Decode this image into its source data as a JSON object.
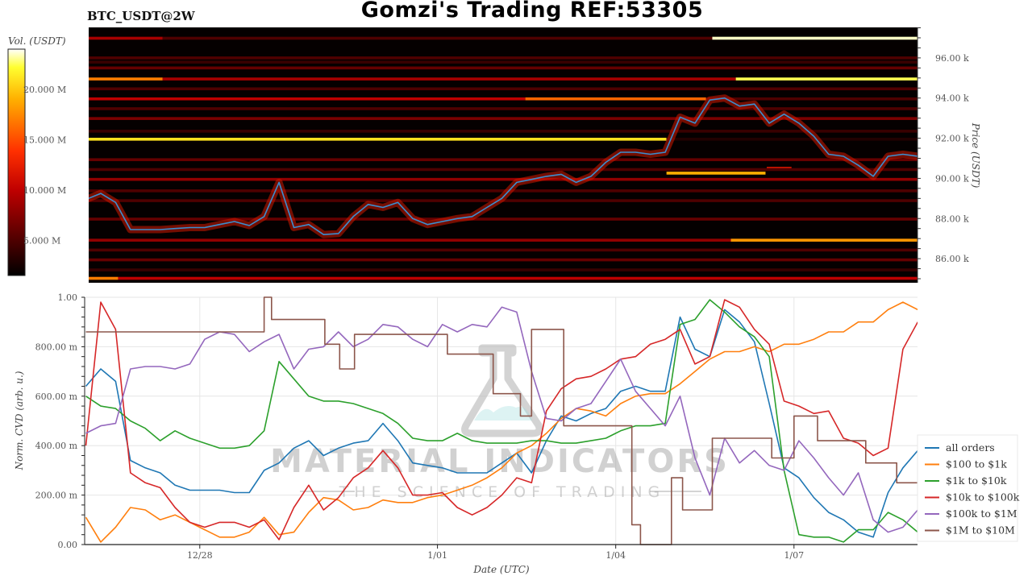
{
  "header": {
    "title": "Gomzi's Trading REF:53305",
    "symbol": "BTC_USDT@2W"
  },
  "watermark": {
    "brand": "MATERIAL INDICATORS",
    "tagline": "THE SCIENCE OF TRADING",
    "icon": "flask-icon"
  },
  "chart_data": [
    {
      "type": "heatmap",
      "ylabel": "Price (USDT)",
      "ylim": [
        84800,
        97520
      ],
      "yticks": [
        {
          "value": 86000,
          "label": "86.00 k"
        },
        {
          "value": 88000,
          "label": "88.00 k"
        },
        {
          "value": 90000,
          "label": "90.00 k"
        },
        {
          "value": 92000,
          "label": "92.00 k"
        },
        {
          "value": 94000,
          "label": "94.00 k"
        },
        {
          "value": 96000,
          "label": "96.00 k"
        }
      ],
      "colorbar": {
        "label": "Vol. (USDT)",
        "colormap": "hot",
        "range_millions": [
          1.5,
          24
        ],
        "ticks": [
          {
            "value": 5,
            "label": "5.000 M"
          },
          {
            "value": 10,
            "label": "10.000 M"
          },
          {
            "value": 15,
            "label": "15.000 M"
          },
          {
            "value": 20,
            "label": "20.000 M"
          }
        ]
      },
      "bands": [
        {
          "price": 96980,
          "segments": [
            [
              "12/26 02:00",
              "12/27 09:00",
              9
            ],
            [
              "12/27 09:00",
              "01/05 15:00",
              5
            ],
            [
              "01/05 15:00",
              "01/09 02:00",
              23.5
            ]
          ]
        },
        {
          "price": 96000,
          "segments": [
            [
              "12/26 02:00",
              "01/09 02:00",
              5
            ]
          ]
        },
        {
          "price": 95790,
          "segments": [
            [
              "12/26 02:00",
              "01/09 02:00",
              4
            ]
          ]
        },
        {
          "price": 95500,
          "segments": [
            [
              "12/26 02:00",
              "01/09 02:00",
              6
            ]
          ]
        },
        {
          "price": 94950,
          "segments": [
            [
              "12/26 02:00",
              "12/27 09:00",
              17
            ],
            [
              "12/27 09:00",
              "01/06 00:30",
              9
            ],
            [
              "01/06 00:30",
              "01/09 02:00",
              22.5
            ]
          ]
        },
        {
          "price": 94460,
          "segments": [
            [
              "12/26 02:00",
              "01/09 02:00",
              5
            ]
          ]
        },
        {
          "price": 93960,
          "segments": [
            [
              "12/26 02:00",
              "01/02 11:30",
              10
            ],
            [
              "01/02 11:30",
              "01/05 12:30",
              16
            ],
            [
              "01/05 12:30",
              "01/09 02:00",
              5
            ]
          ]
        },
        {
          "price": 93470,
          "segments": [
            [
              "12/26 02:00",
              "01/09 02:00",
              5
            ]
          ]
        },
        {
          "price": 92980,
          "segments": [
            [
              "12/26 02:00",
              "01/09 02:00",
              7
            ]
          ]
        },
        {
          "price": 92350,
          "segments": [
            [
              "12/26 02:00",
              "01/09 02:00",
              4
            ]
          ]
        },
        {
          "price": 91950,
          "segments": [
            [
              "12/26 02:00",
              "01/04 20:30",
              21
            ],
            [
              "01/04 20:30",
              "01/09 02:00",
              3
            ]
          ]
        },
        {
          "price": 90930,
          "segments": [
            [
              "12/26 02:00",
              "01/09 02:00",
              6
            ]
          ]
        },
        {
          "price": 90500,
          "segments": [
            [
              "01/06 13:00",
              "01/06 23:00",
              12
            ]
          ]
        },
        {
          "price": 90440,
          "segments": [
            [
              "12/26 02:00",
              "01/09 02:00",
              5
            ]
          ]
        },
        {
          "price": 90260,
          "segments": [
            [
              "01/04 20:30",
              "01/06 12:30",
              19
            ]
          ]
        },
        {
          "price": 89950,
          "segments": [
            [
              "12/26 02:00",
              "01/09 02:00",
              8
            ]
          ]
        },
        {
          "price": 89380,
          "segments": [
            [
              "12/26 02:00",
              "01/09 02:00",
              5
            ]
          ]
        },
        {
          "price": 88890,
          "segments": [
            [
              "12/26 02:00",
              "01/09 02:00",
              5
            ]
          ]
        },
        {
          "price": 87970,
          "segments": [
            [
              "12/26 02:00",
              "01/09 02:00",
              6
            ]
          ]
        },
        {
          "price": 86920,
          "segments": [
            [
              "12/26 02:00",
              "01/05 22:30",
              8
            ],
            [
              "01/05 22:30",
              "01/09 02:00",
              18
            ]
          ]
        },
        {
          "price": 86430,
          "segments": [
            [
              "12/26 02:00",
              "01/09 02:00",
              5
            ]
          ]
        },
        {
          "price": 85940,
          "segments": [
            [
              "12/26 02:00",
              "01/09 02:00",
              6
            ]
          ]
        },
        {
          "price": 85440,
          "segments": [
            [
              "12/26 02:00",
              "01/09 02:00",
              4
            ]
          ]
        },
        {
          "price": 85020,
          "segments": [
            [
              "12/26 02:00",
              "12/26 15:00",
              17
            ],
            [
              "12/26 15:00",
              "01/09 02:00",
              10
            ]
          ]
        },
        {
          "price": 84530,
          "segments": [
            [
              "12/26 02:00",
              "01/09 02:00",
              4
            ]
          ]
        }
      ],
      "price_line": {
        "color": "#3a8fd0",
        "x": [
          "12/26 02:00",
          "12/26 08:00",
          "12/26 14:00",
          "12/26 20:00",
          "12/27 02:00",
          "12/27 08:00",
          "12/27 14:00",
          "12/27 20:00",
          "12/28 02:00",
          "12/28 08:00",
          "12/28 14:00",
          "12/28 20:00",
          "12/29 02:00",
          "12/29 08:00",
          "12/29 14:00",
          "12/29 20:00",
          "12/30 02:00",
          "12/30 08:00",
          "12/30 14:00",
          "12/30 20:00",
          "12/31 02:00",
          "12/31 08:00",
          "12/31 14:00",
          "12/31 20:00",
          "01/01 02:00",
          "01/01 08:00",
          "01/01 14:00",
          "01/01 20:00",
          "01/02 02:00",
          "01/02 08:00",
          "01/02 14:00",
          "01/02 20:00",
          "01/03 02:00",
          "01/03 08:00",
          "01/03 14:00",
          "01/03 20:00",
          "01/04 02:00",
          "01/04 08:00",
          "01/04 14:00",
          "01/04 20:00",
          "01/05 02:00",
          "01/05 08:00",
          "01/05 14:00",
          "01/05 20:00",
          "01/06 02:00",
          "01/06 08:00",
          "01/06 14:00",
          "01/06 20:00",
          "01/07 02:00",
          "01/07 08:00",
          "01/07 14:00",
          "01/07 20:00",
          "01/08 02:00",
          "01/08 08:00",
          "01/08 14:00",
          "01/08 20:00",
          "01/09 02:00"
        ],
        "y": [
          88950,
          89250,
          88800,
          87450,
          87450,
          87450,
          87500,
          87550,
          87550,
          87700,
          87850,
          87650,
          88100,
          89800,
          87550,
          87700,
          87200,
          87250,
          88100,
          88700,
          88550,
          88800,
          88000,
          87700,
          87850,
          88000,
          88100,
          88550,
          89000,
          89800,
          89950,
          90100,
          90200,
          89800,
          90100,
          90800,
          91300,
          91300,
          91200,
          91300,
          93050,
          92750,
          93900,
          94000,
          93600,
          93700,
          92750,
          93200,
          92750,
          92100,
          91200,
          91100,
          90650,
          90100,
          91100,
          91200,
          91100
        ]
      }
    },
    {
      "type": "line",
      "xlabel": "Date (UTC)",
      "ylabel": "Norm. CVD (arb. u.)",
      "ylim": [
        0,
        1
      ],
      "grid": true,
      "legend": "right",
      "xticks": [
        {
          "value": "12/28 00:00",
          "label": "12/28"
        },
        {
          "value": "01/01 00:00",
          "label": "1/01"
        },
        {
          "value": "01/04 00:00",
          "label": "1/04"
        },
        {
          "value": "01/07 00:00",
          "label": "1/07"
        }
      ],
      "yticks": [
        {
          "value": 0,
          "label": "0.00"
        },
        {
          "value": 0.2,
          "label": "200.00 m"
        },
        {
          "value": 0.4,
          "label": "400.00 m"
        },
        {
          "value": 0.6,
          "label": "600.00 m"
        },
        {
          "value": 0.8,
          "label": "800.00 m"
        },
        {
          "value": 1,
          "label": "1.00"
        }
      ],
      "x": [
        "12/26 02:00",
        "12/26 08:00",
        "12/26 14:00",
        "12/26 20:00",
        "12/27 02:00",
        "12/27 08:00",
        "12/27 14:00",
        "12/27 20:00",
        "12/28 02:00",
        "12/28 08:00",
        "12/28 14:00",
        "12/28 20:00",
        "12/29 02:00",
        "12/29 08:00",
        "12/29 14:00",
        "12/29 20:00",
        "12/30 02:00",
        "12/30 08:00",
        "12/30 14:00",
        "12/30 20:00",
        "12/31 02:00",
        "12/31 08:00",
        "12/31 14:00",
        "12/31 20:00",
        "01/01 02:00",
        "01/01 08:00",
        "01/01 14:00",
        "01/01 20:00",
        "01/02 02:00",
        "01/02 08:00",
        "01/02 14:00",
        "01/02 20:00",
        "01/03 02:00",
        "01/03 08:00",
        "01/03 14:00",
        "01/03 20:00",
        "01/04 02:00",
        "01/04 08:00",
        "01/04 14:00",
        "01/04 20:00",
        "01/05 02:00",
        "01/05 08:00",
        "01/05 14:00",
        "01/05 20:00",
        "01/06 02:00",
        "01/06 08:00",
        "01/06 14:00",
        "01/06 20:00",
        "01/07 02:00",
        "01/07 08:00",
        "01/07 14:00",
        "01/07 20:00",
        "01/08 02:00",
        "01/08 08:00",
        "01/08 14:00",
        "01/08 20:00",
        "01/09 02:00"
      ],
      "series": [
        {
          "name": "all orders",
          "color": "#1f77b4",
          "values": [
            0.64,
            0.71,
            0.66,
            0.34,
            0.31,
            0.29,
            0.24,
            0.22,
            0.22,
            0.22,
            0.21,
            0.21,
            0.3,
            0.33,
            0.39,
            0.42,
            0.36,
            0.39,
            0.41,
            0.42,
            0.49,
            0.42,
            0.33,
            0.32,
            0.31,
            0.29,
            0.29,
            0.29,
            0.33,
            0.37,
            0.29,
            0.42,
            0.52,
            0.5,
            0.53,
            0.55,
            0.62,
            0.64,
            0.62,
            0.62,
            0.92,
            0.79,
            0.76,
            0.95,
            0.9,
            0.82,
            0.57,
            0.31,
            0.27,
            0.19,
            0.13,
            0.1,
            0.05,
            0.03,
            0.21,
            0.31,
            0.38
          ]
        },
        {
          "name": "$100 to $1k",
          "color": "#ff7f0e",
          "values": [
            0.11,
            0.01,
            0.07,
            0.15,
            0.14,
            0.1,
            0.12,
            0.09,
            0.06,
            0.03,
            0.03,
            0.05,
            0.11,
            0.04,
            0.05,
            0.13,
            0.19,
            0.18,
            0.14,
            0.15,
            0.18,
            0.17,
            0.17,
            0.19,
            0.2,
            0.22,
            0.24,
            0.27,
            0.31,
            0.37,
            0.4,
            0.45,
            0.51,
            0.55,
            0.54,
            0.52,
            0.57,
            0.6,
            0.61,
            0.61,
            0.65,
            0.7,
            0.75,
            0.78,
            0.78,
            0.8,
            0.78,
            0.81,
            0.81,
            0.83,
            0.86,
            0.86,
            0.9,
            0.9,
            0.95,
            0.98,
            0.95
          ]
        },
        {
          "name": "$1k to $10k",
          "color": "#2ca02c",
          "values": [
            0.6,
            0.56,
            0.55,
            0.5,
            0.47,
            0.42,
            0.46,
            0.43,
            0.41,
            0.39,
            0.39,
            0.4,
            0.46,
            0.74,
            0.67,
            0.6,
            0.58,
            0.58,
            0.57,
            0.55,
            0.53,
            0.49,
            0.43,
            0.42,
            0.42,
            0.45,
            0.42,
            0.41,
            0.41,
            0.41,
            0.42,
            0.42,
            0.41,
            0.41,
            0.42,
            0.43,
            0.46,
            0.48,
            0.48,
            0.49,
            0.89,
            0.91,
            0.99,
            0.94,
            0.88,
            0.84,
            0.76,
            0.3,
            0.04,
            0.03,
            0.03,
            0.01,
            0.06,
            0.06,
            0.13,
            0.1,
            0.05
          ]
        },
        {
          "name": "$10k to $100k",
          "color": "#d62728",
          "values": [
            0.4,
            0.98,
            0.87,
            0.29,
            0.25,
            0.23,
            0.15,
            0.09,
            0.07,
            0.09,
            0.09,
            0.07,
            0.1,
            0.02,
            0.15,
            0.24,
            0.14,
            0.19,
            0.27,
            0.31,
            0.38,
            0.31,
            0.2,
            0.2,
            0.21,
            0.15,
            0.12,
            0.15,
            0.2,
            0.27,
            0.25,
            0.54,
            0.63,
            0.67,
            0.68,
            0.71,
            0.75,
            0.76,
            0.81,
            0.83,
            0.87,
            0.73,
            0.76,
            0.99,
            0.96,
            0.87,
            0.81,
            0.58,
            0.56,
            0.53,
            0.54,
            0.43,
            0.41,
            0.36,
            0.39,
            0.79,
            0.9
          ]
        },
        {
          "name": "$100k to $1M",
          "color": "#9467bd",
          "values": [
            0.45,
            0.48,
            0.49,
            0.71,
            0.72,
            0.72,
            0.71,
            0.73,
            0.83,
            0.86,
            0.85,
            0.78,
            0.82,
            0.85,
            0.71,
            0.79,
            0.8,
            0.86,
            0.8,
            0.83,
            0.89,
            0.88,
            0.83,
            0.8,
            0.89,
            0.86,
            0.89,
            0.88,
            0.96,
            0.94,
            0.7,
            0.51,
            0.5,
            0.55,
            0.57,
            0.66,
            0.75,
            0.62,
            0.55,
            0.48,
            0.6,
            0.35,
            0.2,
            0.43,
            0.33,
            0.38,
            0.32,
            0.3,
            0.42,
            0.35,
            0.27,
            0.2,
            0.29,
            0.1,
            0.05,
            0.07,
            0.14
          ]
        },
        {
          "name": "$1M to $10M",
          "color": "#8c564b",
          "step": true,
          "steps": [
            [
              "12/26 02:00",
              0.86
            ],
            [
              "12/29 02:00",
              1.0
            ],
            [
              "12/29 05:00",
              0.91
            ],
            [
              "12/30 02:30",
              0.81
            ],
            [
              "12/30 08:30",
              0.71
            ],
            [
              "12/30 14:30",
              0.85
            ],
            [
              "01/01 04:00",
              0.77
            ],
            [
              "01/01 22:30",
              0.61
            ],
            [
              "01/02 09:30",
              0.52
            ],
            [
              "01/02 14:00",
              0.87
            ],
            [
              "01/03 03:00",
              0.48
            ],
            [
              "01/04 06:30",
              0.08
            ],
            [
              "01/04 10:00",
              0.0
            ],
            [
              "01/04 22:30",
              0.27
            ],
            [
              "01/05 03:00",
              0.14
            ],
            [
              "01/05 15:00",
              0.43
            ],
            [
              "01/06 15:00",
              0.35
            ],
            [
              "01/07 00:00",
              0.52
            ],
            [
              "01/07 09:30",
              0.42
            ],
            [
              "01/08 05:00",
              0.33
            ],
            [
              "01/08 17:30",
              0.25
            ],
            [
              "01/09 02:00",
              0.25
            ]
          ]
        }
      ]
    }
  ]
}
